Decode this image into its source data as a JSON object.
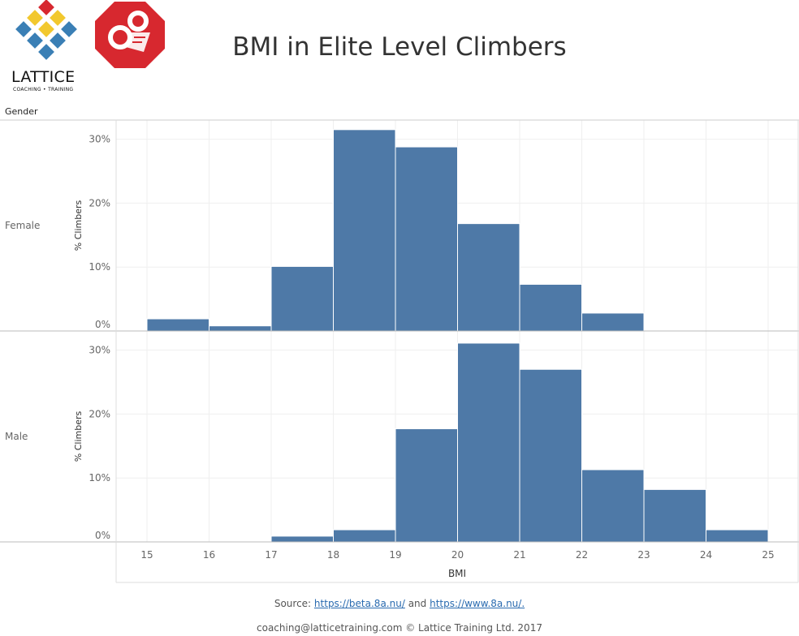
{
  "header": {
    "lattice_logo_text": "LATTICE",
    "lattice_logo_subtext": "COACHING • TRAINING",
    "title": "BMI in Elite Level Climbers"
  },
  "facet_header": "Gender",
  "footer": {
    "source_prefix": "Source: ",
    "source_link1": "https://beta.8a.nu/",
    "source_and": " and ",
    "source_link2": "https://www.8a.nu/.",
    "copyright": "coaching@latticetraining.com © Lattice Training Ltd. 2017"
  },
  "colors": {
    "bar": "#4e79a7",
    "logo_red": "#d7282f",
    "logo_yellow": "#f2c82e",
    "logo_blue": "#3a7fb5"
  },
  "chart_data": [
    {
      "type": "bar",
      "facet": "Female",
      "xlabel": "BMI",
      "ylabel": "% Climbers",
      "bins": [
        [
          15,
          16
        ],
        [
          16,
          17
        ],
        [
          17,
          18
        ],
        [
          18,
          19
        ],
        [
          19,
          20
        ],
        [
          20,
          21
        ],
        [
          21,
          22
        ],
        [
          22,
          23
        ]
      ],
      "values": [
        1.9,
        0.8,
        10.1,
        31.5,
        28.8,
        16.8,
        7.3,
        2.8
      ],
      "ylim": [
        0,
        33
      ],
      "yticks": [
        "0%",
        "10%",
        "20%",
        "30%"
      ],
      "grid": true
    },
    {
      "type": "bar",
      "facet": "Male",
      "xlabel": "BMI",
      "ylabel": "% Climbers",
      "bins": [
        [
          17,
          18
        ],
        [
          18,
          19
        ],
        [
          19,
          20
        ],
        [
          20,
          21
        ],
        [
          21,
          22
        ],
        [
          22,
          23
        ],
        [
          23,
          24
        ],
        [
          24,
          25
        ]
      ],
      "values": [
        0.9,
        1.9,
        17.7,
        31.1,
        27.0,
        11.3,
        8.2,
        1.9
      ],
      "ylim": [
        0,
        33
      ],
      "yticks": [
        "0%",
        "10%",
        "20%",
        "30%"
      ],
      "xticks": [
        "15",
        "16",
        "17",
        "18",
        "19",
        "20",
        "21",
        "22",
        "23",
        "24",
        "25"
      ],
      "grid": true
    }
  ]
}
